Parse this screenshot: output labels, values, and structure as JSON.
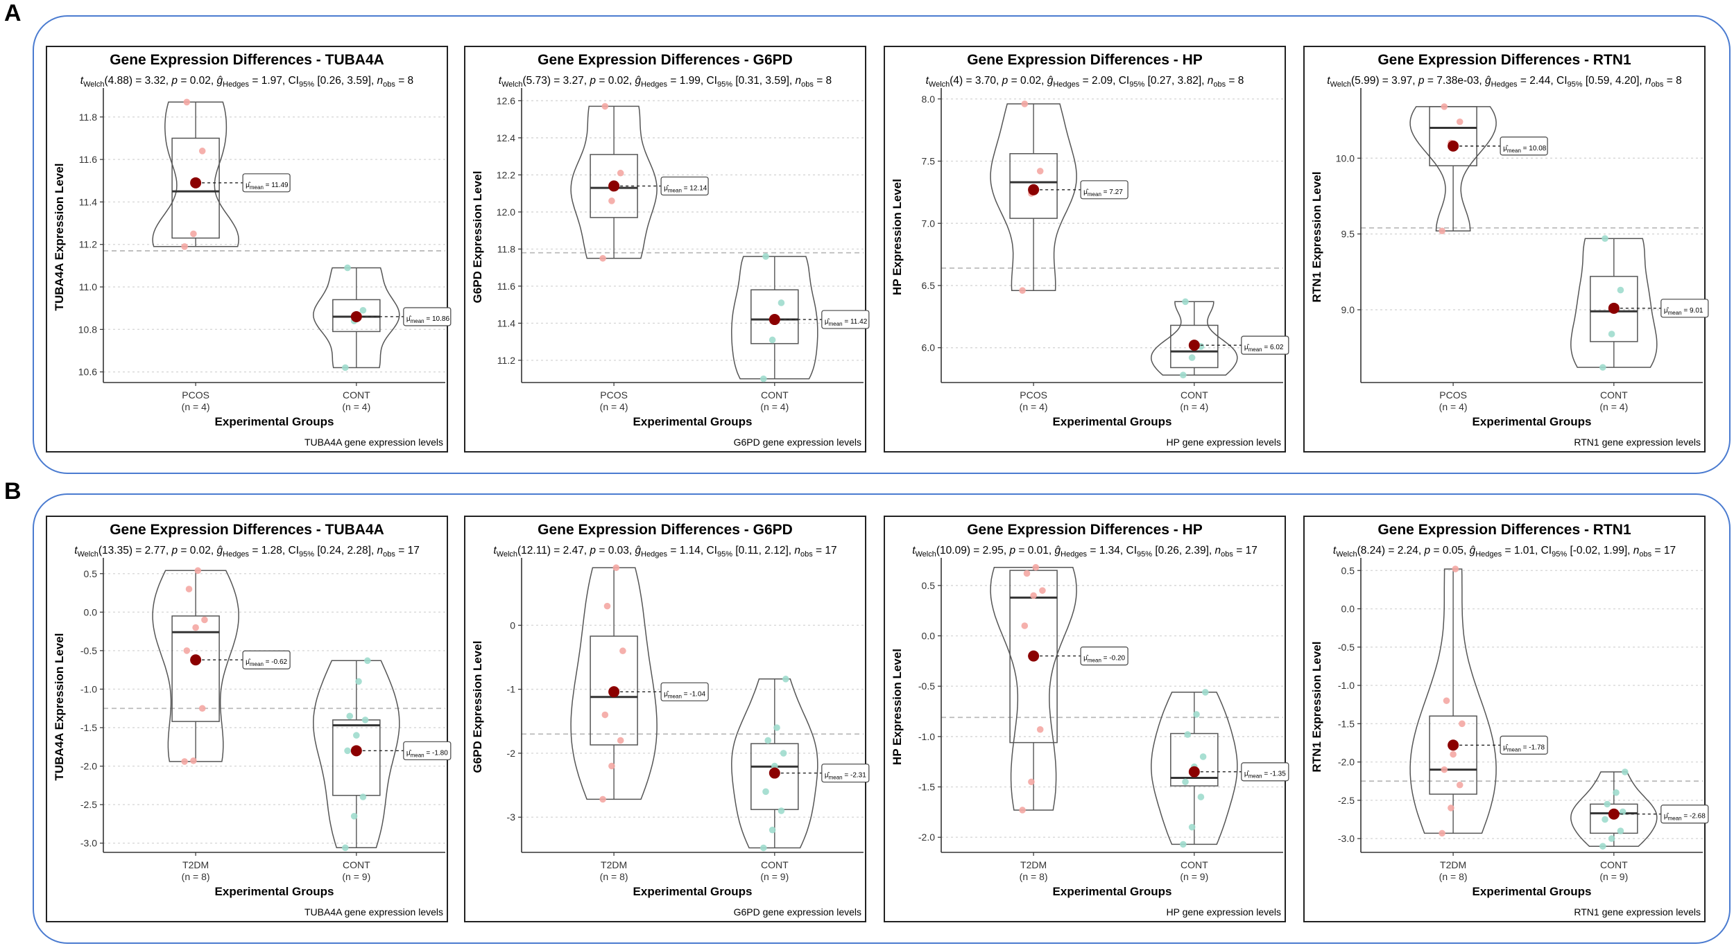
{
  "sections": [
    {
      "letter": "A"
    },
    {
      "letter": "B"
    }
  ],
  "colors": {
    "frame": "#4a7bd0",
    "group1_point": "#f4a7a3",
    "group2_point": "#9fdccd",
    "mean_point": "#8b0000",
    "grand_mean_line": "#bbbbbb"
  },
  "chart_data": [
    {
      "type": "violin-box",
      "section": "A",
      "title": "Gene Expression Differences - TUBA4A",
      "stats": {
        "t_df": "4.88",
        "t": "3.32",
        "p": "0.02",
        "g": "1.97",
        "ci": "[0.26, 3.59]",
        "n": "8"
      },
      "ylabel": "TUBA4A Expression Level",
      "xlabel": "Experimental Groups",
      "caption": "TUBA4A gene expression levels",
      "ylim": [
        10.55,
        11.92
      ],
      "yticks": [
        10.6,
        10.8,
        11.0,
        11.2,
        11.4,
        11.6,
        11.8
      ],
      "tickfmt": 1,
      "grand_mean": 11.17,
      "groups": [
        {
          "name": "PCOS",
          "n": "(n = 4)",
          "mean": 11.49,
          "mean_label": "11.49",
          "box": [
            11.23,
            11.45,
            11.7
          ],
          "range": [
            11.19,
            11.87
          ],
          "points": [
            11.19,
            11.25,
            11.64,
            11.87
          ]
        },
        {
          "name": "CONT",
          "n": "(n = 4)",
          "mean": 10.86,
          "mean_label": "10.86",
          "box": [
            10.79,
            10.86,
            10.94
          ],
          "range": [
            10.62,
            11.09
          ],
          "points": [
            10.62,
            10.84,
            10.89,
            11.09
          ]
        }
      ]
    },
    {
      "type": "violin-box",
      "section": "A",
      "title": "Gene Expression Differences - G6PD",
      "stats": {
        "t_df": "5.73",
        "t": "3.27",
        "p": "0.02",
        "g": "1.99",
        "ci": "[0.31, 3.59]",
        "n": "8"
      },
      "ylabel": "G6PD Expression Level",
      "xlabel": "Experimental Groups",
      "caption": "G6PD gene expression levels",
      "ylim": [
        11.08,
        12.65
      ],
      "yticks": [
        11.2,
        11.4,
        11.6,
        11.8,
        12.0,
        12.2,
        12.4,
        12.6
      ],
      "tickfmt": 1,
      "grand_mean": 11.78,
      "groups": [
        {
          "name": "PCOS",
          "n": "(n = 4)",
          "mean": 12.14,
          "mean_label": "12.14",
          "box": [
            11.97,
            12.13,
            12.31
          ],
          "range": [
            11.75,
            12.57
          ],
          "points": [
            11.75,
            12.06,
            12.21,
            12.57
          ]
        },
        {
          "name": "CONT",
          "n": "(n = 4)",
          "mean": 11.42,
          "mean_label": "11.42",
          "box": [
            11.29,
            11.42,
            11.58
          ],
          "range": [
            11.1,
            11.76
          ],
          "points": [
            11.1,
            11.31,
            11.51,
            11.76
          ]
        }
      ]
    },
    {
      "type": "violin-box",
      "section": "A",
      "title": "Gene Expression Differences - HP",
      "stats": {
        "t_df": "4",
        "t": "3.70",
        "p": "0.02",
        "g": "2.09",
        "ci": "[0.27, 3.82]",
        "n": "8"
      },
      "ylabel": "HP Expression Level",
      "xlabel": "Experimental Groups",
      "caption": "HP gene expression levels",
      "ylim": [
        5.72,
        8.06
      ],
      "yticks": [
        6.0,
        6.5,
        7.0,
        7.5,
        8.0
      ],
      "tickfmt": 1,
      "grand_mean": 6.64,
      "groups": [
        {
          "name": "PCOS",
          "n": "(n = 4)",
          "mean": 7.27,
          "mean_label": "7.27",
          "box": [
            7.04,
            7.33,
            7.56
          ],
          "range": [
            6.46,
            7.96
          ],
          "points": [
            6.46,
            7.24,
            7.42,
            7.96
          ]
        },
        {
          "name": "CONT",
          "n": "(n = 4)",
          "mean": 6.02,
          "mean_label": "6.02",
          "box": [
            5.84,
            5.97,
            6.18
          ],
          "range": [
            5.78,
            6.37
          ],
          "points": [
            5.78,
            5.92,
            6.01,
            6.37
          ]
        }
      ]
    },
    {
      "type": "violin-box",
      "section": "A",
      "title": "Gene Expression Differences - RTN1",
      "stats": {
        "t_df": "5.99",
        "t": "3.97",
        "p": "7.38e-03",
        "g": "2.44",
        "ci": "[0.59, 4.20]",
        "n": "8"
      },
      "ylabel": "RTN1 Expression Level",
      "xlabel": "Experimental Groups",
      "caption": "RTN1 gene expression levels",
      "ylim": [
        8.52,
        10.44
      ],
      "yticks": [
        9.0,
        9.5,
        10.0
      ],
      "tickfmt": 1,
      "grand_mean": 9.54,
      "groups": [
        {
          "name": "PCOS",
          "n": "(n = 4)",
          "mean": 10.08,
          "mean_label": "10.08",
          "box": [
            9.95,
            10.2,
            10.34
          ],
          "range": [
            9.52,
            10.34
          ],
          "points": [
            9.52,
            10.1,
            10.24,
            10.34
          ]
        },
        {
          "name": "CONT",
          "n": "(n = 4)",
          "mean": 9.01,
          "mean_label": "9.01",
          "box": [
            8.79,
            8.99,
            9.22
          ],
          "range": [
            8.62,
            9.47
          ],
          "points": [
            8.62,
            8.84,
            9.13,
            9.47
          ]
        }
      ]
    },
    {
      "type": "violin-box",
      "section": "B",
      "title": "Gene Expression Differences - TUBA4A",
      "stats": {
        "t_df": "13.35",
        "t": "2.77",
        "p": "0.02",
        "g": "1.28",
        "ci": "[0.24, 2.28]",
        "n": "17"
      },
      "ylabel": "TUBA4A Expression Level",
      "xlabel": "Experimental Groups",
      "caption": "TUBA4A gene expression levels",
      "ylim": [
        -3.12,
        0.66
      ],
      "yticks": [
        -3.0,
        -2.5,
        -2.0,
        -1.5,
        -1.0,
        -0.5,
        0.0,
        0.5
      ],
      "tickfmt": 1,
      "grand_mean": -1.25,
      "groups": [
        {
          "name": "T2DM",
          "n": "(n = 8)",
          "mean": -0.62,
          "mean_label": "-0.62",
          "box": [
            -1.42,
            -0.26,
            -0.05
          ],
          "range": [
            -1.94,
            0.54
          ],
          "points": [
            -1.94,
            -1.93,
            -1.25,
            -0.5,
            -0.2,
            -0.1,
            0.3,
            0.54
          ]
        },
        {
          "name": "CONT",
          "n": "(n = 9)",
          "mean": -1.8,
          "mean_label": "-1.80",
          "box": [
            -2.38,
            -1.47,
            -1.4
          ],
          "range": [
            -3.06,
            -0.63
          ],
          "points": [
            -3.06,
            -2.65,
            -2.4,
            -1.8,
            -1.6,
            -1.4,
            -1.35,
            -0.9,
            -0.63
          ]
        }
      ]
    },
    {
      "type": "violin-box",
      "section": "B",
      "title": "Gene Expression Differences - G6PD",
      "stats": {
        "t_df": "12.11",
        "t": "2.47",
        "p": "0.03",
        "g": "1.14",
        "ci": "[0.11, 2.12]",
        "n": "17"
      },
      "ylabel": "G6PD Expression Level",
      "xlabel": "Experimental Groups",
      "caption": "G6PD gene expression levels",
      "ylim": [
        -3.55,
        1.0
      ],
      "yticks": [
        -3,
        -2,
        -1,
        0
      ],
      "tickfmt": 0,
      "grand_mean": -1.7,
      "groups": [
        {
          "name": "T2DM",
          "n": "(n = 8)",
          "mean": -1.04,
          "mean_label": "-1.04",
          "box": [
            -1.87,
            -1.12,
            -0.17
          ],
          "range": [
            -2.72,
            0.9
          ],
          "points": [
            -2.72,
            -2.2,
            -1.8,
            -1.4,
            -1.0,
            -0.4,
            0.3,
            0.9
          ]
        },
        {
          "name": "CONT",
          "n": "(n = 9)",
          "mean": -2.31,
          "mean_label": "-2.31",
          "box": [
            -2.88,
            -2.21,
            -1.85
          ],
          "range": [
            -3.48,
            -0.84
          ],
          "points": [
            -3.48,
            -3.2,
            -2.9,
            -2.6,
            -2.2,
            -2.0,
            -1.8,
            -1.6,
            -0.84
          ]
        }
      ]
    },
    {
      "type": "violin-box",
      "section": "B",
      "title": "Gene Expression Differences - HP",
      "stats": {
        "t_df": "10.09",
        "t": "2.95",
        "p": "0.01",
        "g": "1.34",
        "ci": "[0.26, 2.39]",
        "n": "17"
      },
      "ylabel": "HP Expression Level",
      "xlabel": "Experimental Groups",
      "caption": "HP gene expression levels",
      "ylim": [
        -2.15,
        0.74
      ],
      "yticks": [
        -2.0,
        -1.5,
        -1.0,
        -0.5,
        0.0,
        0.5
      ],
      "tickfmt": 1,
      "grand_mean": -0.81,
      "groups": [
        {
          "name": "T2DM",
          "n": "(n = 8)",
          "mean": -0.2,
          "mean_label": "-0.20",
          "box": [
            -1.06,
            0.38,
            0.65
          ],
          "range": [
            -1.73,
            0.68
          ],
          "points": [
            -1.73,
            -1.45,
            -0.93,
            0.1,
            0.4,
            0.45,
            0.62,
            0.68
          ]
        },
        {
          "name": "CONT",
          "n": "(n = 9)",
          "mean": -1.35,
          "mean_label": "-1.35",
          "box": [
            -1.49,
            -1.41,
            -0.97
          ],
          "range": [
            -2.07,
            -0.56
          ],
          "points": [
            -2.07,
            -1.9,
            -1.6,
            -1.45,
            -1.3,
            -1.2,
            -0.98,
            -0.78,
            -0.56
          ]
        }
      ]
    },
    {
      "type": "violin-box",
      "section": "B",
      "title": "Gene Expression Differences - RTN1",
      "stats": {
        "t_df": "8.24",
        "t": "2.24",
        "p": "0.05",
        "g": "1.01",
        "ci": "[-0.02, 1.99]",
        "n": "17"
      },
      "ylabel": "RTN1 Expression Level",
      "xlabel": "Experimental Groups",
      "caption": "RTN1 gene expression levels",
      "ylim": [
        -3.18,
        0.62
      ],
      "yticks": [
        -3.0,
        -2.5,
        -2.0,
        -1.5,
        -1.0,
        -0.5,
        0.0,
        0.5
      ],
      "tickfmt": 1,
      "grand_mean": -2.25,
      "groups": [
        {
          "name": "T2DM",
          "n": "(n = 8)",
          "mean": -1.78,
          "mean_label": "-1.78",
          "box": [
            -2.42,
            -2.1,
            -1.4
          ],
          "range": [
            -2.93,
            0.52
          ],
          "points": [
            -2.93,
            -2.6,
            -2.3,
            -2.1,
            -1.9,
            -1.5,
            -1.2,
            0.52
          ]
        },
        {
          "name": "CONT",
          "n": "(n = 9)",
          "mean": -2.68,
          "mean_label": "-2.68",
          "box": [
            -2.93,
            -2.67,
            -2.55
          ],
          "range": [
            -3.1,
            -2.13
          ],
          "points": [
            -3.1,
            -3.0,
            -2.9,
            -2.75,
            -2.7,
            -2.65,
            -2.55,
            -2.4,
            -2.13
          ]
        }
      ]
    }
  ]
}
